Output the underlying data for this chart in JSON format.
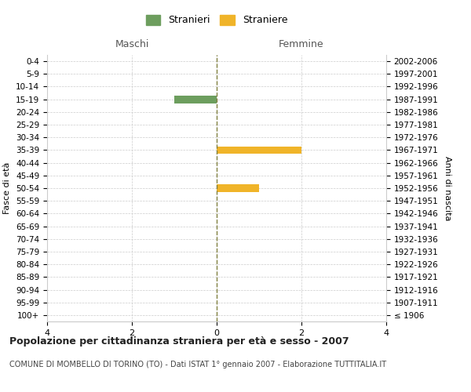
{
  "age_groups": [
    "100+",
    "95-99",
    "90-94",
    "85-89",
    "80-84",
    "75-79",
    "70-74",
    "65-69",
    "60-64",
    "55-59",
    "50-54",
    "45-49",
    "40-44",
    "35-39",
    "30-34",
    "25-29",
    "20-24",
    "15-19",
    "10-14",
    "5-9",
    "0-4"
  ],
  "birth_years": [
    "≤ 1906",
    "1907-1911",
    "1912-1916",
    "1917-1921",
    "1922-1926",
    "1927-1931",
    "1932-1936",
    "1937-1941",
    "1942-1946",
    "1947-1951",
    "1952-1956",
    "1957-1961",
    "1962-1966",
    "1967-1971",
    "1972-1976",
    "1977-1981",
    "1982-1986",
    "1987-1991",
    "1992-1996",
    "1997-2001",
    "2002-2006"
  ],
  "maschi_values": [
    0,
    0,
    0,
    0,
    0,
    0,
    0,
    0,
    0,
    0,
    0,
    0,
    0,
    0,
    0,
    0,
    0,
    1,
    0,
    0,
    0
  ],
  "femmine_values": [
    0,
    0,
    0,
    0,
    0,
    0,
    0,
    0,
    0,
    0,
    1,
    0,
    0,
    2,
    0,
    0,
    0,
    0,
    0,
    0,
    0
  ],
  "maschi_color": "#6d9e5e",
  "femmine_color": "#f0b429",
  "background_color": "#ffffff",
  "grid_color": "#cccccc",
  "center_line_color": "#808040",
  "xlim": 4,
  "title": "Popolazione per cittadinanza straniera per età e sesso - 2007",
  "subtitle": "COMUNE DI MOMBELLO DI TORINO (TO) - Dati ISTAT 1° gennaio 2007 - Elaborazione TUTTITALIA.IT",
  "ylabel_left": "Fasce di età",
  "ylabel_right": "Anni di nascita",
  "maschi_label": "Maschi",
  "femmine_label": "Femmine",
  "legend_stranieri": "Stranieri",
  "legend_straniere": "Straniere"
}
